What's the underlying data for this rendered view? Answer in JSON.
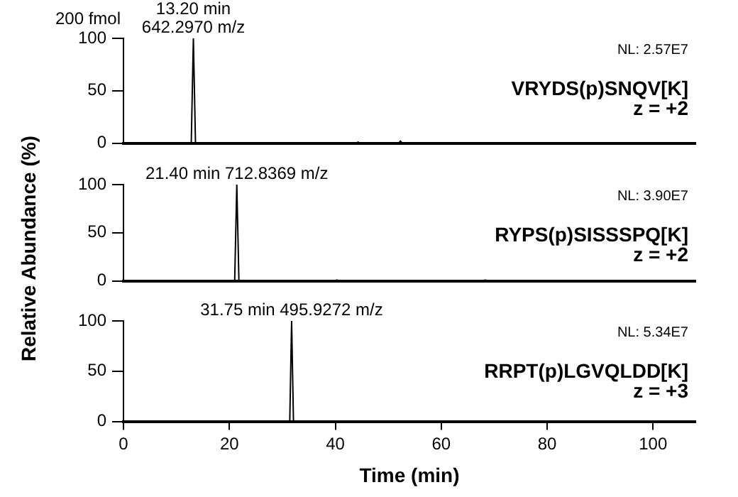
{
  "chart_data": [
    {
      "type": "line",
      "x": [
        0,
        12.8,
        13.2,
        13.6,
        44,
        44.3,
        44.6,
        52,
        52.3,
        52.6,
        108
      ],
      "series": [
        {
          "color": "#000000",
          "values": [
            0,
            0,
            100,
            0,
            0,
            1,
            0,
            0,
            2,
            0,
            0
          ]
        }
      ],
      "xlim": [
        0,
        108
      ],
      "ylim": [
        0,
        100
      ],
      "yticks": [
        0,
        50,
        100
      ],
      "tick_labels": "y",
      "grid": false,
      "legend": false,
      "marker": "none",
      "annotations": [
        "NL: 2.57E7",
        "VRYDS(p)SNQV[K]",
        "z = +2",
        "200 fmol",
        {
          "text": "13.20 min\n642.2970 m/z",
          "x": 13.2,
          "y": 100
        }
      ]
    },
    {
      "type": "line",
      "x": [
        0,
        21,
        21.4,
        21.8,
        40,
        40.3,
        40.6,
        68,
        68.3,
        68.6,
        108
      ],
      "series": [
        {
          "color": "#000000",
          "values": [
            0,
            0,
            100,
            0,
            0,
            1,
            0,
            0,
            1,
            0,
            0
          ]
        }
      ],
      "xlim": [
        0,
        108
      ],
      "ylim": [
        0,
        100
      ],
      "yticks": [
        0,
        50,
        100
      ],
      "tick_labels": "y",
      "grid": false,
      "legend": false,
      "marker": "none",
      "ylabel": "Relative Abundance (%)",
      "annotations": [
        "NL: 3.90E7",
        "RYPS(p)SISSSPQ[K]",
        "z = +2",
        {
          "text": "21.40 min 712.8369 m/z",
          "x": 21.4,
          "y": 100
        }
      ]
    },
    {
      "type": "line",
      "x": [
        0,
        31.4,
        31.75,
        32.1,
        108
      ],
      "series": [
        {
          "color": "#000000",
          "values": [
            0,
            0,
            100,
            0,
            0
          ]
        }
      ],
      "xlim": [
        0,
        108
      ],
      "ylim": [
        0,
        100
      ],
      "xticks": [
        0,
        20,
        40,
        60,
        80,
        100
      ],
      "yticks": [
        0,
        50,
        100
      ],
      "grid": false,
      "legend": false,
      "marker": "none",
      "xlabel": "Time (min)",
      "annotations": [
        "NL: 5.34E7",
        "RRPT(p)LGVQLDD[K]",
        "z = +3",
        {
          "text": "31.75 min 495.9272 m/z",
          "x": 31.75,
          "y": 100
        }
      ]
    }
  ]
}
